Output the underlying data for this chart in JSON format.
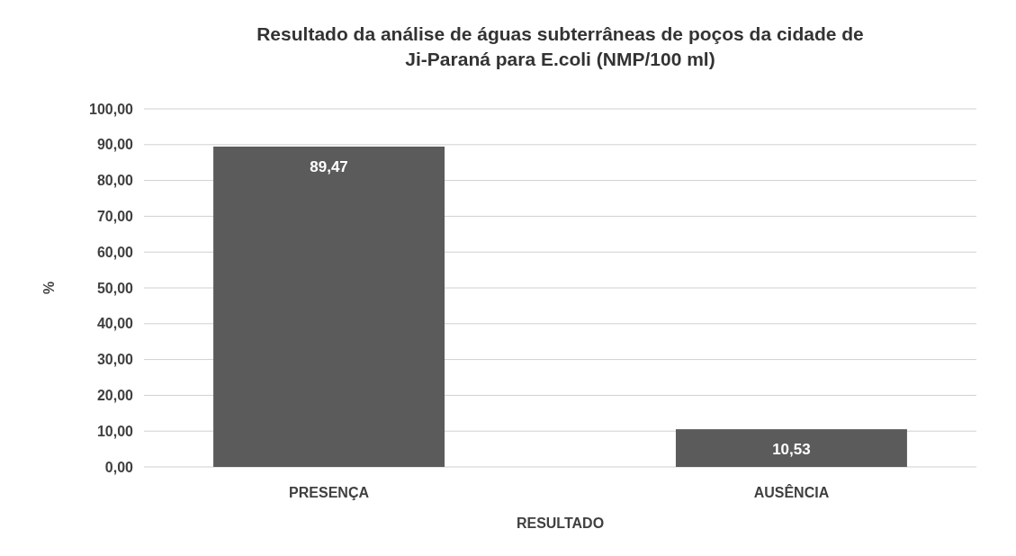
{
  "chart_data": {
    "type": "bar",
    "title": "Resultado da análise de águas subterrâneas de poços da cidade de Ji-Paraná para E.coli (NMP/100 ml)",
    "xlabel": "RESULTADO",
    "ylabel": "%",
    "categories": [
      "PRESENÇA",
      "AUSÊNCIA"
    ],
    "values": [
      89.47,
      10.53
    ],
    "value_labels": [
      "89,47",
      "10,53"
    ],
    "color": "#5b5b5b",
    "ylim": [
      0,
      100
    ],
    "yticks": [
      {
        "value": 0,
        "label": "0,00"
      },
      {
        "value": 10,
        "label": "10,00"
      },
      {
        "value": 20,
        "label": "20,00"
      },
      {
        "value": 30,
        "label": "30,00"
      },
      {
        "value": 40,
        "label": "40,00"
      },
      {
        "value": 50,
        "label": "50,00"
      },
      {
        "value": 60,
        "label": "60,00"
      },
      {
        "value": 70,
        "label": "70,00"
      },
      {
        "value": 80,
        "label": "80,00"
      },
      {
        "value": 90,
        "label": "90,00"
      },
      {
        "value": 100,
        "label": "100,00"
      }
    ],
    "grid": "y"
  }
}
